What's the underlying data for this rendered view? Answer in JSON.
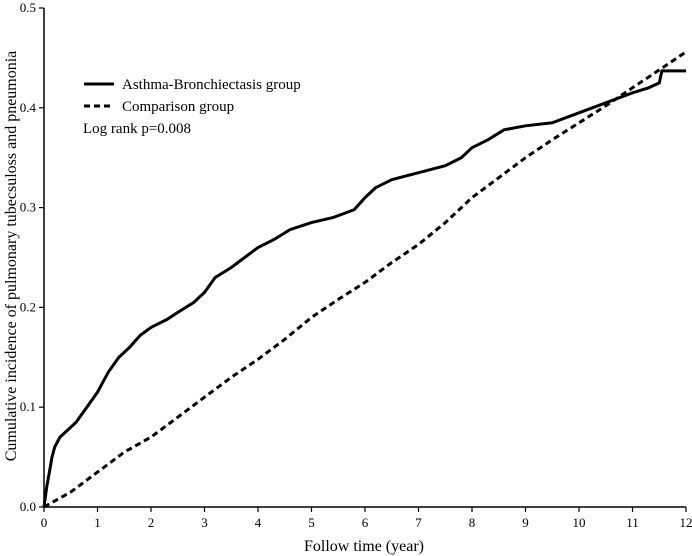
{
  "chart_data": {
    "type": "line",
    "title": "",
    "xlabel": "Follow time (year)",
    "ylabel": "Cumulative incidence of pulmonary tubecsuloss and pneumonia",
    "xlim": [
      0,
      12
    ],
    "ylim": [
      0,
      0.5
    ],
    "x_ticks": [
      "0",
      "1",
      "2",
      "3",
      "4",
      "5",
      "6",
      "7",
      "8",
      "9",
      "10",
      "11",
      "12"
    ],
    "y_ticks": [
      "0.0",
      "0.1",
      "0.2",
      "0.3",
      "0.4",
      "0.5"
    ],
    "grid": false,
    "legend_position": "top-left",
    "annotation": "Log rank p=0.008",
    "series": [
      {
        "name": "Asthma-Bronchiectasis group",
        "style": "solid",
        "color": "#000000",
        "x": [
          0,
          0.05,
          0.1,
          0.15,
          0.2,
          0.3,
          0.4,
          0.5,
          0.6,
          0.8,
          1.0,
          1.2,
          1.4,
          1.6,
          1.8,
          2.0,
          2.3,
          2.5,
          2.8,
          3.0,
          3.2,
          3.5,
          3.8,
          4.0,
          4.3,
          4.6,
          5.0,
          5.4,
          5.8,
          6.0,
          6.2,
          6.5,
          7.0,
          7.5,
          7.8,
          8.0,
          8.3,
          8.6,
          9.0,
          9.5,
          10.0,
          10.5,
          11.0,
          11.3,
          11.5,
          11.55,
          12.0
        ],
        "y": [
          0,
          0.02,
          0.035,
          0.05,
          0.06,
          0.07,
          0.075,
          0.08,
          0.085,
          0.1,
          0.115,
          0.135,
          0.15,
          0.16,
          0.172,
          0.18,
          0.188,
          0.195,
          0.205,
          0.215,
          0.23,
          0.24,
          0.252,
          0.26,
          0.268,
          0.278,
          0.285,
          0.29,
          0.298,
          0.31,
          0.32,
          0.328,
          0.335,
          0.342,
          0.35,
          0.36,
          0.368,
          0.378,
          0.382,
          0.385,
          0.395,
          0.405,
          0.415,
          0.42,
          0.425,
          0.437,
          0.437
        ]
      },
      {
        "name": "Comparison group",
        "style": "dashed",
        "color": "#000000",
        "x": [
          0,
          0.5,
          1.0,
          1.5,
          2.0,
          2.5,
          3.0,
          3.5,
          4.0,
          4.5,
          5.0,
          5.5,
          6.0,
          6.5,
          7.0,
          7.5,
          8.0,
          8.5,
          9.0,
          9.5,
          10.0,
          10.5,
          11.0,
          11.5,
          12.0
        ],
        "y": [
          0,
          0.015,
          0.035,
          0.055,
          0.07,
          0.09,
          0.11,
          0.13,
          0.148,
          0.168,
          0.19,
          0.208,
          0.225,
          0.245,
          0.263,
          0.285,
          0.31,
          0.33,
          0.35,
          0.368,
          0.385,
          0.402,
          0.42,
          0.438,
          0.456
        ]
      }
    ]
  }
}
